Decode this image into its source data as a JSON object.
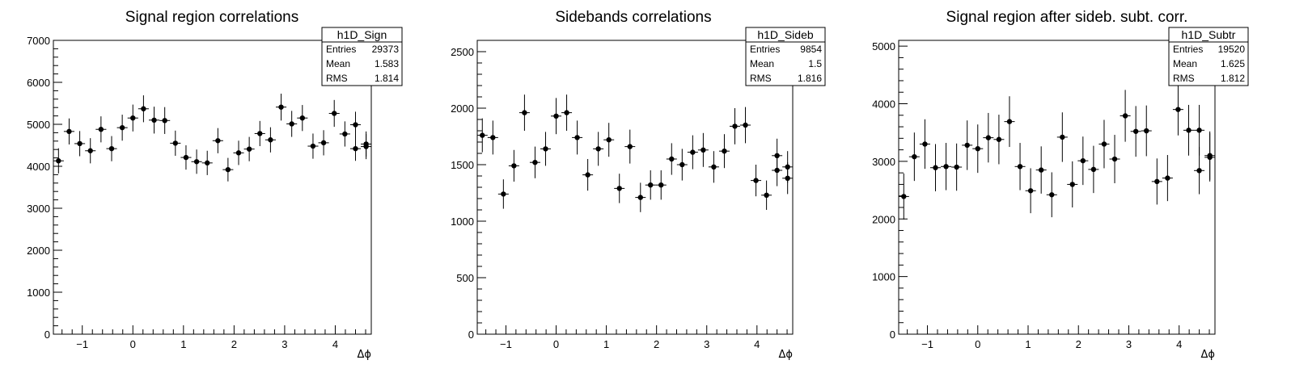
{
  "chart_data": [
    {
      "type": "scatter",
      "title": "Signal region correlations",
      "xlabel": "Δϕ",
      "ylabel": "",
      "xlim": [
        -1.571,
        4.712
      ],
      "ylim": [
        0,
        7000
      ],
      "xticks": [
        -1,
        0,
        1,
        2,
        3,
        4
      ],
      "yticks": [
        0,
        1000,
        2000,
        3000,
        4000,
        5000,
        6000,
        7000
      ],
      "stats": {
        "name": "h1D_Sign",
        "rows": [
          {
            "label": "Entries",
            "value": "29373"
          },
          {
            "label": "Mean",
            "value": "1.583"
          },
          {
            "label": "RMS",
            "value": "1.814"
          }
        ]
      },
      "x": [
        -1.47,
        -1.26,
        -1.05,
        -0.84,
        -0.63,
        -0.42,
        -0.21,
        0.0,
        0.21,
        0.42,
        0.63,
        0.84,
        1.05,
        1.26,
        1.47,
        1.68,
        1.88,
        2.09,
        2.3,
        2.51,
        2.72,
        2.93,
        3.14,
        3.35,
        3.56,
        3.77,
        3.98,
        4.19,
        4.4,
        4.61
      ],
      "y": [
        4130,
        4830,
        4540,
        4370,
        4880,
        4420,
        4920,
        5150,
        5370,
        5100,
        5090,
        4550,
        4210,
        4110,
        4080,
        4610,
        3920,
        4320,
        4410,
        4780,
        4630,
        5410,
        5010,
        5150,
        4480,
        4560,
        5260,
        4770,
        4420,
        4470
      ],
      "yerr": [
        300,
        310,
        300,
        300,
        310,
        300,
        310,
        320,
        320,
        320,
        320,
        300,
        290,
        290,
        290,
        300,
        280,
        290,
        290,
        300,
        300,
        320,
        310,
        310,
        300,
        300,
        320,
        300,
        290,
        300
      ],
      "extra_points": {
        "x": [
          4.4,
          4.61
        ],
        "y": [
          4990,
          4530
        ],
        "yerr": [
          310,
          300
        ]
      }
    },
    {
      "type": "scatter",
      "title": "Sidebands correlations",
      "xlabel": "Δϕ",
      "ylabel": "",
      "xlim": [
        -1.571,
        4.712
      ],
      "ylim": [
        0,
        2600
      ],
      "xticks": [
        -1,
        0,
        1,
        2,
        3,
        4
      ],
      "yticks": [
        0,
        500,
        1000,
        1500,
        2000,
        2500
      ],
      "stats": {
        "name": "h1D_Sideb",
        "rows": [
          {
            "label": "Entries",
            "value": "9854"
          },
          {
            "label": "Mean",
            "value": "1.5"
          },
          {
            "label": "RMS",
            "value": "1.816"
          }
        ]
      },
      "x": [
        -1.47,
        -1.26,
        -1.05,
        -0.84,
        -0.63,
        -0.42,
        -0.21,
        0.0,
        0.21,
        0.42,
        0.63,
        0.84,
        1.05,
        1.26,
        1.47,
        1.68,
        1.88,
        2.09,
        2.3,
        2.51,
        2.72,
        2.93,
        3.14,
        3.35,
        3.56,
        3.77,
        3.98,
        4.19,
        4.4,
        4.61
      ],
      "y": [
        1760,
        1740,
        1240,
        1490,
        1960,
        1520,
        1640,
        1930,
        1960,
        1740,
        1410,
        1640,
        1720,
        1290,
        1660,
        1210,
        1320,
        1320,
        1550,
        1500,
        1610,
        1630,
        1480,
        1620,
        1840,
        1850,
        1360,
        1230,
        1580,
        1380
      ],
      "yerr": [
        150,
        150,
        130,
        140,
        160,
        140,
        150,
        160,
        160,
        150,
        140,
        150,
        150,
        130,
        150,
        130,
        130,
        130,
        140,
        140,
        150,
        150,
        140,
        150,
        160,
        160,
        140,
        130,
        150,
        140
      ],
      "extra_points": {
        "x": [
          4.4,
          4.61
        ],
        "y": [
          1450,
          1480
        ],
        "yerr": [
          140,
          140
        ]
      }
    },
    {
      "type": "scatter",
      "title": "Signal region after sideb. subt. corr.",
      "xlabel": "Δϕ",
      "ylabel": "",
      "xlim": [
        -1.571,
        4.712
      ],
      "ylim": [
        0,
        5100
      ],
      "xticks": [
        -1,
        0,
        1,
        2,
        3,
        4
      ],
      "yticks": [
        0,
        1000,
        2000,
        3000,
        4000,
        5000
      ],
      "stats": {
        "name": "h1D_Subtr",
        "rows": [
          {
            "label": "Entries",
            "value": "19520"
          },
          {
            "label": "Mean",
            "value": "1.625"
          },
          {
            "label": "RMS",
            "value": "1.812"
          }
        ]
      },
      "x": [
        -1.47,
        -1.26,
        -1.05,
        -0.84,
        -0.63,
        -0.42,
        -0.21,
        0.0,
        0.21,
        0.42,
        0.63,
        0.84,
        1.05,
        1.26,
        1.47,
        1.68,
        1.88,
        2.09,
        2.3,
        2.51,
        2.72,
        2.93,
        3.14,
        3.35,
        3.56,
        3.77,
        3.98,
        4.19,
        4.4,
        4.61
      ],
      "y": [
        2390,
        3080,
        3300,
        2890,
        2910,
        2900,
        3280,
        3220,
        3410,
        3380,
        3690,
        2910,
        2490,
        2850,
        2420,
        3420,
        2600,
        3010,
        2860,
        3300,
        3040,
        3790,
        3520,
        3530,
        2650,
        2710,
        3900,
        3540,
        2840,
        3100
      ],
      "yerr": [
        400,
        420,
        430,
        410,
        410,
        410,
        430,
        420,
        430,
        430,
        440,
        410,
        390,
        410,
        390,
        430,
        400,
        420,
        410,
        420,
        420,
        450,
        440,
        440,
        400,
        400,
        450,
        440,
        410,
        420
      ],
      "extra_points": {
        "x": [
          4.4,
          4.61
        ],
        "y": [
          3540,
          3070
        ],
        "yerr": [
          440,
          420
        ]
      }
    }
  ]
}
